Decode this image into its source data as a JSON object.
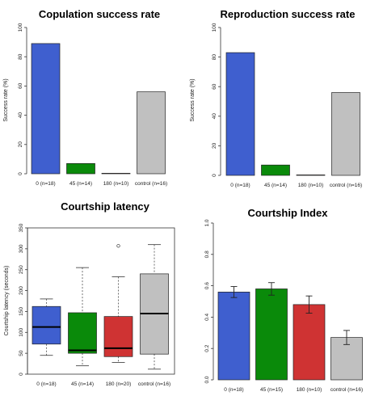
{
  "chart_data": [
    {
      "type": "bar",
      "title": "Copulation success rate",
      "xlabel": "",
      "ylabel": "Success rate (%)",
      "ylim": [
        0,
        100
      ],
      "yticks": [
        "0",
        "20",
        "40",
        "60",
        "80",
        "100"
      ],
      "categories": [
        "0 (n=18)",
        "45 (n=14)",
        "180 (n=10)",
        "control (n=16)"
      ],
      "values": [
        89,
        7,
        0,
        56
      ],
      "colors": [
        "#3f5fcf",
        "#0a8a0a",
        "#cf3333",
        "#c0c0c0"
      ]
    },
    {
      "type": "bar",
      "title": "Reproduction success rate",
      "xlabel": "",
      "ylabel": "Success rate (%)",
      "ylim": [
        0,
        100
      ],
      "yticks": [
        "0",
        "20",
        "40",
        "60",
        "80",
        "100"
      ],
      "categories": [
        "0 (n=18)",
        "45 (n=14)",
        "180 (n=10)",
        "control (n=16)"
      ],
      "values": [
        83,
        7,
        0,
        56
      ],
      "colors": [
        "#3f5fcf",
        "#0a8a0a",
        "#cf3333",
        "#c0c0c0"
      ]
    },
    {
      "type": "box",
      "title": "Courtship latency",
      "xlabel": "",
      "ylabel": "Courtship latency (seconds)",
      "ylim": [
        0,
        350
      ],
      "yticks": [
        "0",
        "50",
        "100",
        "150",
        "200",
        "250",
        "300",
        "350"
      ],
      "categories": [
        "0 (n=18)",
        "45 (n=14)",
        "180 (n=20)",
        "control (n=16)"
      ],
      "boxes": [
        {
          "min": 45,
          "q1": 72,
          "median": 113,
          "q3": 162,
          "max": 180,
          "outliers": []
        },
        {
          "min": 20,
          "q1": 50,
          "median": 57,
          "q3": 147,
          "max": 255,
          "outliers": []
        },
        {
          "min": 28,
          "q1": 42,
          "median": 62,
          "q3": 138,
          "max": 233,
          "outliers": [
            307
          ]
        },
        {
          "min": 12,
          "q1": 48,
          "median": 145,
          "q3": 240,
          "max": 310,
          "outliers": []
        }
      ],
      "colors": [
        "#3f5fcf",
        "#0a8a0a",
        "#cf3333",
        "#c0c0c0"
      ]
    },
    {
      "type": "bar",
      "title": "Courtship Index",
      "xlabel": "",
      "ylabel": "",
      "ylim": [
        0,
        1.0
      ],
      "yticks": [
        "0.0",
        "0.2",
        "0.4",
        "0.6",
        "0.8",
        "1.0"
      ],
      "categories": [
        "0 (n=18)",
        "45 (n=15)",
        "180 (n=10)",
        "control (n=16)"
      ],
      "values": [
        0.56,
        0.58,
        0.48,
        0.27
      ],
      "errors": [
        0.035,
        0.04,
        0.055,
        0.045
      ],
      "colors": [
        "#3f5fcf",
        "#0a8a0a",
        "#cf3333",
        "#c0c0c0"
      ]
    }
  ]
}
